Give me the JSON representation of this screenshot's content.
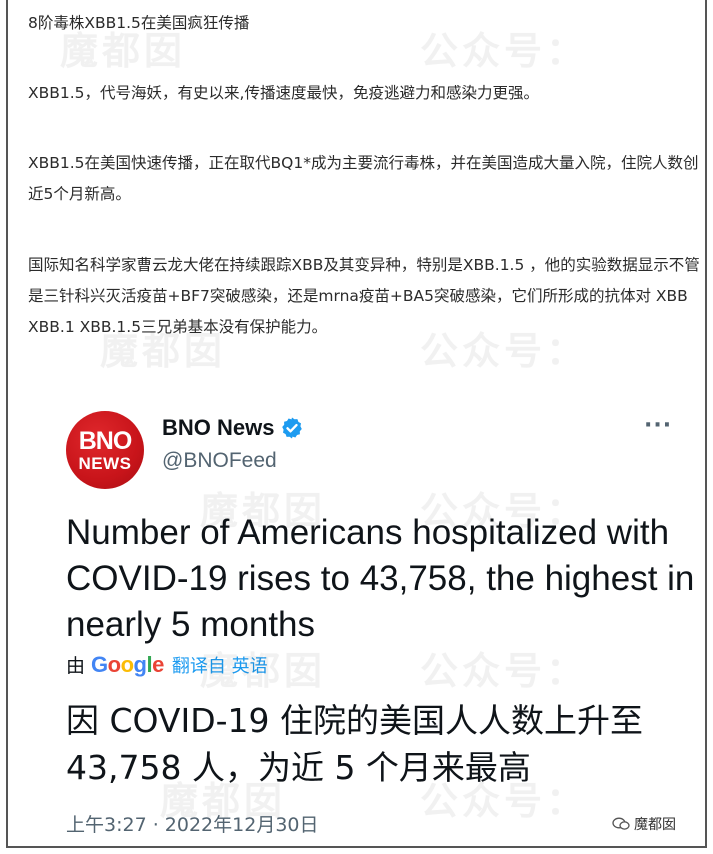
{
  "article": {
    "p1": "8阶毒株XBB1.5在美国疯狂传播",
    "p2": "XBB1.5，代号海妖，有史以来,传播速度最快，免疫逃避力和感染力更强。",
    "p3": "XBB1.5在美国快速传播，正在取代BQ1*成为主要流行毒株，并在美国造成大量入院，住院人数创近5个月新高。",
    "p4": "国际知名科学家曹云龙大佬在持续跟踪XBB及其变异种，特别是XBB.1.5 ，他的实验数据显示不管是三针科兴灭活疫苗+BF7突破感染，还是mrna疫苗+BA5突破感染，它们所形成的抗体对 XBB XBB.1 XBB.1.5三兄弟基本没有保护能力。"
  },
  "tweet": {
    "avatar_line1": "BNO",
    "avatar_line2": "NEWS",
    "author_name": "BNO News",
    "handle": "@BNOFeed",
    "more_icon": "···",
    "text": "Number of Americans hospitalized with COVID-19 rises to 43,758, the highest in nearly 5 months",
    "translate_by": "由",
    "translate_provider": "Google",
    "translate_from": "翻译自 英语",
    "translated_text": "因 COVID-19 住院的美国人人数上升至 43,758 人，为近 5 个月来最高",
    "timestamp": "上午3:27 · 2022年12月30日"
  },
  "badge": {
    "label": "魔都囡"
  },
  "watermark": {
    "text1": "魔都囡",
    "text2": "公众号："
  },
  "colors": {
    "brand_red": "#c8141a",
    "verified_blue": "#1d9bf0",
    "text_dark": "#0f1419",
    "text_muted": "#536471"
  }
}
